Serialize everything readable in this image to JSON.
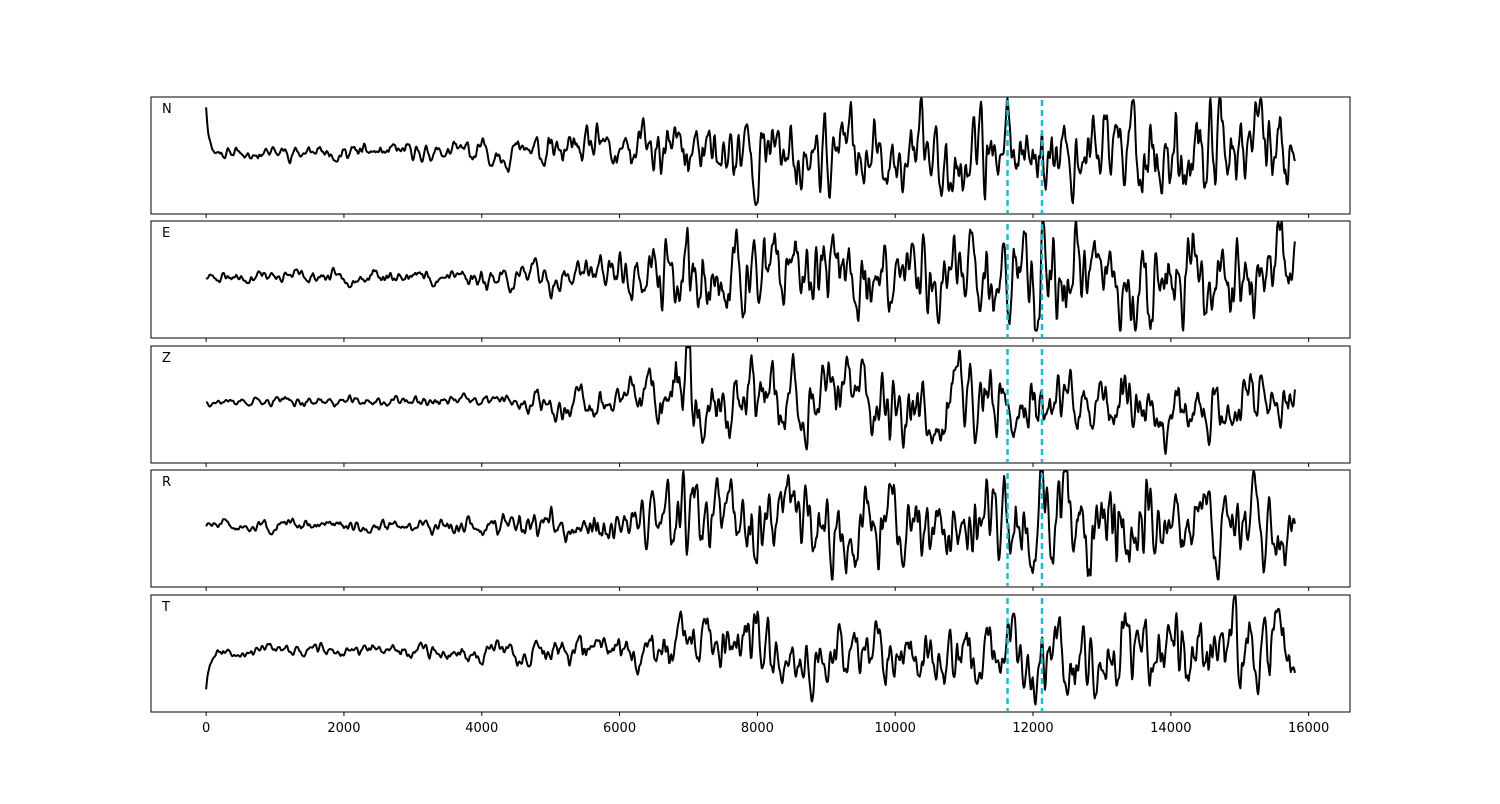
{
  "chart_data": {
    "type": "line",
    "title": "",
    "xlabel": "",
    "ylabel": "",
    "xlim": [
      -800,
      16600
    ],
    "x_ticks": [
      0,
      2000,
      4000,
      6000,
      8000,
      10000,
      12000,
      14000,
      16000
    ],
    "x_tick_labels": [
      "0",
      "2000",
      "4000",
      "6000",
      "8000",
      "10000",
      "12000",
      "14000",
      "16000"
    ],
    "x_start": 0,
    "x_end": 15800,
    "grid": false,
    "legend": "none",
    "colors": {
      "trace": "#000000",
      "marker": "#17becf",
      "frame": "#000000"
    },
    "vertical_markers": [
      11630,
      12130
    ],
    "panels": [
      {
        "label": "N",
        "seed": 11,
        "initial_spike": 1.0,
        "envelope": [
          [
            0,
            0.12
          ],
          [
            3000,
            0.16
          ],
          [
            4800,
            0.28
          ],
          [
            6200,
            0.5
          ],
          [
            7600,
            0.7
          ],
          [
            9500,
            0.7
          ],
          [
            11000,
            0.85
          ],
          [
            12800,
            0.9
          ],
          [
            14500,
            1.0
          ],
          [
            15800,
            0.8
          ]
        ],
        "burst": []
      },
      {
        "label": "E",
        "seed": 23,
        "initial_spike": 0.0,
        "envelope": [
          [
            0,
            0.12
          ],
          [
            3000,
            0.14
          ],
          [
            4800,
            0.28
          ],
          [
            6400,
            0.5
          ],
          [
            6900,
            0.85
          ],
          [
            9000,
            0.7
          ],
          [
            11000,
            0.85
          ],
          [
            12200,
            1.0
          ],
          [
            14000,
            0.9
          ],
          [
            15800,
            0.8
          ]
        ],
        "burst": [
          [
            12100,
            1.6
          ]
        ]
      },
      {
        "label": "Z",
        "seed": 37,
        "initial_spike": 0.0,
        "envelope": [
          [
            0,
            0.08
          ],
          [
            4500,
            0.14
          ],
          [
            4900,
            0.3
          ],
          [
            6300,
            0.35
          ],
          [
            6800,
            1.0
          ],
          [
            7200,
            0.8
          ],
          [
            9500,
            0.75
          ],
          [
            11000,
            0.95
          ],
          [
            12500,
            0.7
          ],
          [
            15800,
            0.6
          ]
        ],
        "burst": [
          [
            6950,
            1.7
          ]
        ]
      },
      {
        "label": "R",
        "seed": 51,
        "initial_spike": 0.0,
        "envelope": [
          [
            0,
            0.1
          ],
          [
            3500,
            0.14
          ],
          [
            4800,
            0.3
          ],
          [
            6400,
            0.45
          ],
          [
            7000,
            0.75
          ],
          [
            9500,
            0.75
          ],
          [
            11000,
            0.85
          ],
          [
            12100,
            1.0
          ],
          [
            14000,
            0.9
          ],
          [
            15800,
            0.7
          ]
        ],
        "burst": [
          [
            12080,
            1.6
          ]
        ]
      },
      {
        "label": "T",
        "seed": 67,
        "initial_spike": -0.8,
        "envelope": [
          [
            0,
            0.12
          ],
          [
            3000,
            0.16
          ],
          [
            4800,
            0.28
          ],
          [
            6200,
            0.4
          ],
          [
            7600,
            0.7
          ],
          [
            9500,
            0.6
          ],
          [
            11000,
            0.8
          ],
          [
            12800,
            0.85
          ],
          [
            15400,
            1.0
          ],
          [
            15800,
            0.8
          ]
        ],
        "burst": [
          [
            15450,
            1.5
          ]
        ]
      }
    ]
  }
}
